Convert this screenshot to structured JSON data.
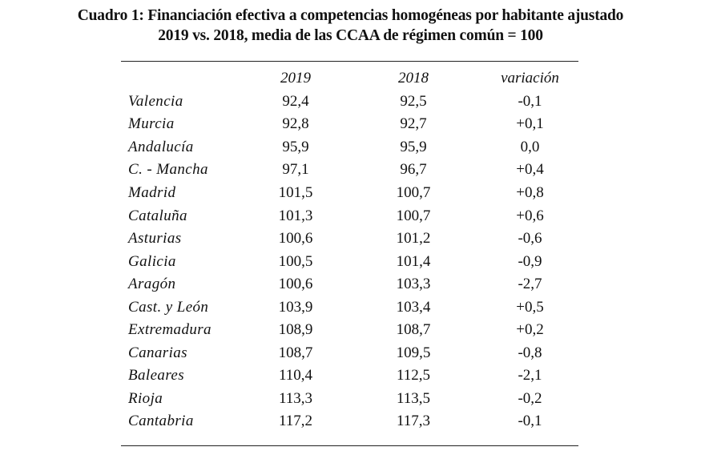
{
  "chart_data": {
    "type": "table",
    "title": "Cuadro 1: Financiación efectiva a competencias homogéneas por habitante ajustado",
    "subtitle": "2019 vs. 2018, media de las CCAA de régimen común = 100",
    "columns": [
      "",
      "2019",
      "2018",
      "variación"
    ],
    "rows": [
      {
        "region": "Valencia",
        "y2019": "92,4",
        "y2018": "92,5",
        "variacion": "-0,1"
      },
      {
        "region": "Murcia",
        "y2019": "92,8",
        "y2018": "92,7",
        "variacion": "+0,1"
      },
      {
        "region": "Andalucía",
        "y2019": "95,9",
        "y2018": "95,9",
        "variacion": "0,0"
      },
      {
        "region": "C. - Mancha",
        "y2019": "97,1",
        "y2018": "96,7",
        "variacion": "+0,4"
      },
      {
        "region": "Madrid",
        "y2019": "101,5",
        "y2018": "100,7",
        "variacion": "+0,8"
      },
      {
        "region": "Cataluña",
        "y2019": "101,3",
        "y2018": "100,7",
        "variacion": "+0,6"
      },
      {
        "region": "Asturias",
        "y2019": "100,6",
        "y2018": "101,2",
        "variacion": "-0,6"
      },
      {
        "region": "Galicia",
        "y2019": "100,5",
        "y2018": "101,4",
        "variacion": "-0,9"
      },
      {
        "region": "Aragón",
        "y2019": "100,6",
        "y2018": "103,3",
        "variacion": "-2,7"
      },
      {
        "region": "Cast. y León",
        "y2019": "103,9",
        "y2018": "103,4",
        "variacion": "+0,5"
      },
      {
        "region": "Extremadura",
        "y2019": "108,9",
        "y2018": "108,7",
        "variacion": "+0,2"
      },
      {
        "region": "Canarias",
        "y2019": "108,7",
        "y2018": "109,5",
        "variacion": "-0,8"
      },
      {
        "region": "Baleares",
        "y2019": "110,4",
        "y2018": "112,5",
        "variacion": "-2,1"
      },
      {
        "region": "Rioja",
        "y2019": "113,3",
        "y2018": "113,5",
        "variacion": "-0,2"
      },
      {
        "region": "Cantabria",
        "y2019": "117,2",
        "y2018": "117,3",
        "variacion": "-0,1"
      }
    ]
  }
}
